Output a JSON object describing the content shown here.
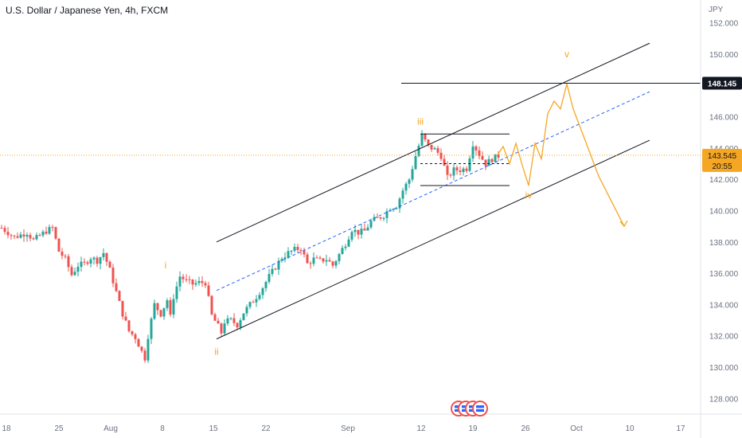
{
  "chart_title": "U.S. Dollar / Japanese Yen, 4h, FXCM",
  "colors": {
    "up": "#26a69a",
    "down": "#ef5350",
    "forecast": "#f5a623",
    "channel": "#131722",
    "median": "#2962ff",
    "price_tag": "#f5a623",
    "level_tag": "#131722"
  },
  "chart_data": {
    "type": "candlestick",
    "title": "U.S. Dollar / Japanese Yen, 4h, FXCM",
    "y_unit": "JPY",
    "ylim": [
      127,
      152.5
    ],
    "y_ticks": [
      "152.000",
      "150.000",
      "148.000",
      "146.000",
      "144.000",
      "142.000",
      "140.000",
      "138.000",
      "136.000",
      "134.000",
      "132.000",
      "130.000",
      "128.000"
    ],
    "x_ticks": [
      "18",
      "25",
      "Aug",
      "8",
      "15",
      "22",
      "Sep",
      "12",
      "19",
      "26",
      "Oct",
      "10",
      "17"
    ],
    "current_price": "143.545",
    "countdown": "20:55",
    "level_price": "148.145",
    "wave_labels": [
      "i",
      "ii",
      "iii",
      "iv",
      "v"
    ],
    "path_days": [
      [
        0,
        138.9
      ],
      [
        2,
        138.3
      ],
      [
        4,
        138.6
      ],
      [
        5,
        138.1
      ],
      [
        6,
        138.4
      ],
      [
        7,
        138.7
      ],
      [
        8,
        138.9
      ],
      [
        9,
        137.4
      ],
      [
        10,
        136.9
      ],
      [
        11,
        135.9
      ],
      [
        12,
        136.5
      ],
      [
        13,
        136.6
      ],
      [
        14,
        137.0
      ],
      [
        15,
        136.8
      ],
      [
        16,
        137.3
      ],
      [
        17,
        136.2
      ],
      [
        18,
        134.8
      ],
      [
        19,
        133.4
      ],
      [
        20,
        132.3
      ],
      [
        21,
        131.9
      ],
      [
        22,
        131.0
      ],
      [
        22.6,
        130.5
      ],
      [
        23,
        132.0
      ],
      [
        24,
        134.0
      ],
      [
        25,
        133.4
      ],
      [
        26,
        134.3
      ],
      [
        26.5,
        133.2
      ],
      [
        27,
        134.5
      ],
      [
        28,
        135.8
      ],
      [
        29,
        135.5
      ],
      [
        30,
        135.3
      ],
      [
        31,
        135.4
      ],
      [
        32,
        135.4
      ],
      [
        33,
        133.3
      ],
      [
        34,
        132.6
      ],
      [
        34.5,
        132.2
      ],
      [
        35,
        132.9
      ],
      [
        36,
        133.0
      ],
      [
        37,
        132.7
      ],
      [
        38,
        133.5
      ],
      [
        39,
        134.0
      ],
      [
        40,
        134.5
      ],
      [
        41,
        135.1
      ],
      [
        42,
        135.8
      ],
      [
        43,
        136.4
      ],
      [
        44,
        137.0
      ],
      [
        45,
        137.3
      ],
      [
        46,
        137.5
      ],
      [
        47,
        137.6
      ],
      [
        48,
        136.6
      ],
      [
        49,
        136.9
      ],
      [
        50,
        136.8
      ],
      [
        51,
        136.9
      ],
      [
        52,
        136.5
      ],
      [
        53,
        137.2
      ],
      [
        54,
        137.9
      ],
      [
        55,
        138.8
      ],
      [
        56,
        138.6
      ],
      [
        57,
        138.7
      ],
      [
        58,
        139.3
      ],
      [
        59,
        139.5
      ],
      [
        60,
        139.7
      ],
      [
        61,
        140.2
      ],
      [
        62,
        140.3
      ],
      [
        63,
        141.3
      ],
      [
        64,
        142.0
      ],
      [
        65,
        143.5
      ],
      [
        66,
        144.8
      ],
      [
        67,
        144.1
      ],
      [
        68,
        143.9
      ],
      [
        69,
        143.5
      ],
      [
        70,
        142.1
      ],
      [
        71,
        142.6
      ],
      [
        72,
        142.6
      ],
      [
        73,
        142.7
      ],
      [
        74,
        144.3
      ],
      [
        75,
        143.6
      ],
      [
        76,
        143.0
      ],
      [
        77,
        143.3
      ],
      [
        78,
        143.5
      ]
    ],
    "forecast_days": [
      [
        78,
        143.5
      ],
      [
        79,
        144.1
      ],
      [
        80,
        143.0
      ],
      [
        81,
        144.3
      ],
      [
        82,
        142.9
      ],
      [
        83,
        141.6
      ],
      [
        84,
        144.3
      ],
      [
        85,
        143.3
      ],
      [
        86,
        146.2
      ],
      [
        87,
        147.0
      ],
      [
        88,
        146.5
      ],
      [
        89,
        148.1
      ],
      [
        90,
        146.5
      ],
      [
        94,
        142.2
      ],
      [
        96,
        140.6
      ],
      [
        98,
        139.0
      ]
    ],
    "channel_upper": [
      [
        34,
        138.0
      ],
      [
        102,
        150.7
      ]
    ],
    "channel_lower": [
      [
        34,
        131.8
      ],
      [
        102,
        144.5
      ]
    ],
    "median_line": [
      [
        34,
        134.9
      ],
      [
        102,
        147.6
      ]
    ],
    "box": {
      "x0": 66,
      "x1": 80,
      "y0": 141.6,
      "y1": 144.9,
      "mid": 143.0
    },
    "level_line": {
      "x0": 63,
      "y": 148.1
    },
    "label_points": {
      "i": [
        26,
        136.3
      ],
      "ii": [
        34,
        130.8
      ],
      "iii": [
        66,
        145.5
      ],
      "iv": [
        83,
        140.8
      ],
      "v": [
        89,
        149.8
      ]
    },
    "x_domain": [
      0,
      110
    ]
  },
  "events": {
    "count": 4
  }
}
